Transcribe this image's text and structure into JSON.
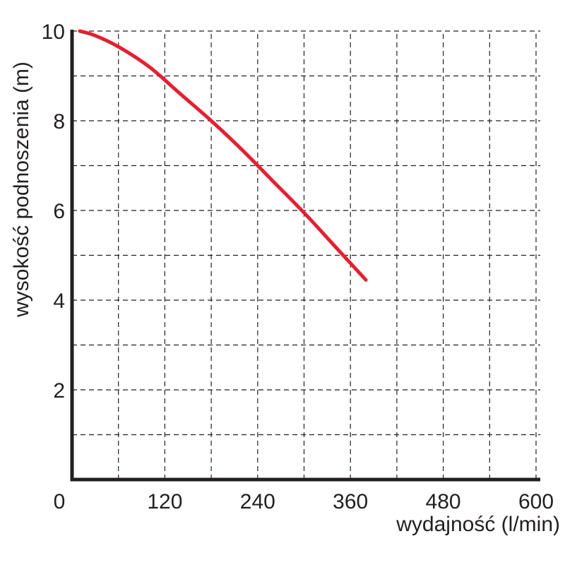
{
  "chart_data": {
    "type": "line",
    "xlabel": "wydajność (l/min)",
    "ylabel": "wysokość podnoszenia (m)",
    "xlim": [
      0,
      600
    ],
    "ylim": [
      0,
      10
    ],
    "x_ticks": [
      0,
      120,
      240,
      360,
      480,
      600
    ],
    "x_tick_labels": [
      "0",
      "120",
      "240",
      "360",
      "480",
      "600"
    ],
    "y_ticks": [
      2,
      4,
      6,
      8,
      10
    ],
    "y_tick_labels": [
      "2",
      "4",
      "6",
      "8",
      "10"
    ],
    "x_grid": [
      60,
      120,
      180,
      240,
      300,
      360,
      420,
      480,
      540,
      600
    ],
    "y_grid": [
      1,
      2,
      3,
      4,
      5,
      6,
      7,
      8,
      9,
      10
    ],
    "grid": "dashed",
    "series": [
      {
        "color": "#e4202f",
        "x": [
          10,
          30,
          60,
          100,
          140,
          180,
          220,
          260,
          300,
          340,
          380
        ],
        "y": [
          10.0,
          9.9,
          9.65,
          9.2,
          8.6,
          8.0,
          7.35,
          6.65,
          5.95,
          5.2,
          4.45
        ]
      }
    ]
  }
}
